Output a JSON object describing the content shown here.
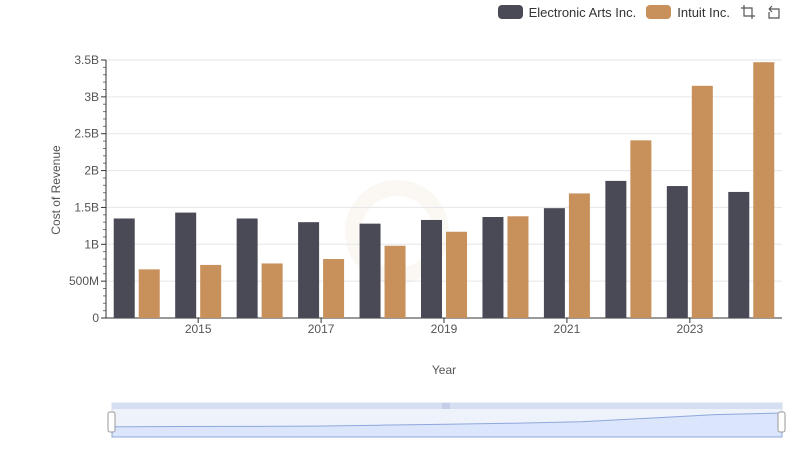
{
  "chart_data": {
    "type": "bar",
    "categories": [
      "2014",
      "2015",
      "2016",
      "2017",
      "2018",
      "2019",
      "2020",
      "2021",
      "2022",
      "2023",
      "2024"
    ],
    "x_tick_labels": [
      "2015",
      "2017",
      "2019",
      "2021",
      "2023"
    ],
    "series": [
      {
        "name": "Electronic Arts Inc.",
        "color": "#4a4a57",
        "values": [
          1350000000,
          1430000000,
          1350000000,
          1300000000,
          1280000000,
          1330000000,
          1370000000,
          1490000000,
          1860000000,
          1790000000,
          1710000000
        ]
      },
      {
        "name": "Intuit Inc.",
        "color": "#c8905a",
        "values": [
          660000000,
          720000000,
          740000000,
          800000000,
          980000000,
          1170000000,
          1380000000,
          1690000000,
          2410000000,
          3150000000,
          3470000000
        ]
      }
    ],
    "ylabel": "Cost of Revenue",
    "xlabel": "Year",
    "ylim": [
      0,
      3500000000
    ],
    "y_ticks": [
      {
        "value": 0,
        "label": "0"
      },
      {
        "value": 500000000,
        "label": "500M"
      },
      {
        "value": 1000000000,
        "label": "1B"
      },
      {
        "value": 1500000000,
        "label": "1.5B"
      },
      {
        "value": 2000000000,
        "label": "2B"
      },
      {
        "value": 2500000000,
        "label": "2.5B"
      },
      {
        "value": 3000000000,
        "label": "3B"
      },
      {
        "value": 3500000000,
        "label": "3.5B"
      }
    ],
    "grid": true,
    "legend_position": "top-right"
  },
  "toolbar": {
    "zoom_icon": "zoom-select-icon",
    "reset_icon": "zoom-reset-icon"
  },
  "colors": {
    "grid": "#e6e6ea",
    "axis": "#333333",
    "slider_fill": "#dbe5fb",
    "slider_border": "#c7d3ee",
    "slider_line": "#8ea8dd"
  }
}
